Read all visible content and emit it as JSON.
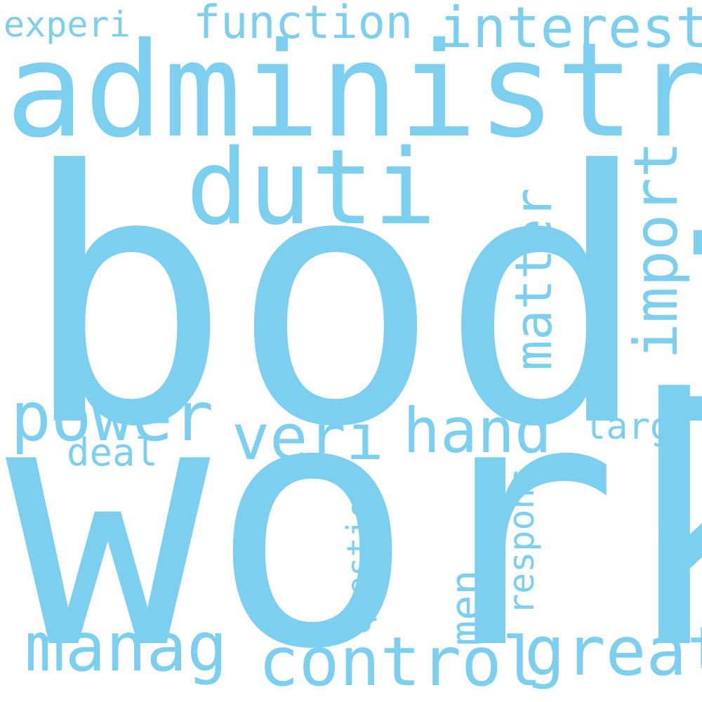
{
  "word_color": "#7ccfef",
  "background": "#ffffff",
  "words": {
    "bodi": "bodi",
    "work": "work",
    "administr": "administr",
    "duti": "duti",
    "function": "function",
    "interest": "interest",
    "experi": "experi",
    "matter": "matter",
    "import": "import",
    "power": "power",
    "veri": "veri",
    "hand": "hand",
    "larg": "larg",
    "deal": "deal",
    "question": "question",
    "respons": "respons",
    "men": "men",
    "manag": "manag",
    "control": "control",
    "great": "great"
  }
}
